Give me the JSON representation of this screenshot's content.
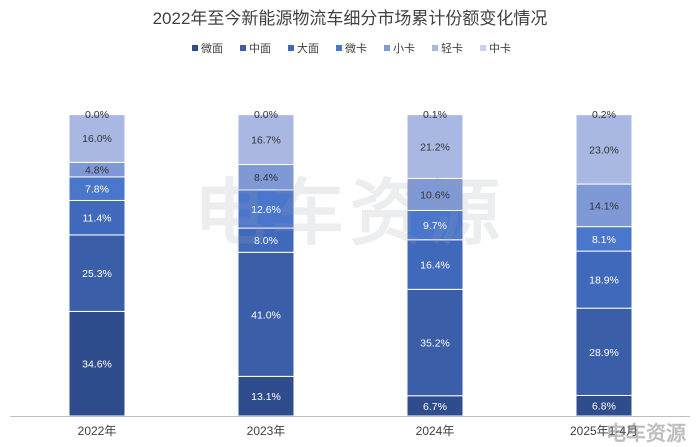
{
  "chart_data": {
    "type": "bar",
    "stacked": true,
    "normalized": true,
    "title": "2022年至今新能源物流车细分市场累计份额变化情况",
    "categories": [
      "2022年",
      "2023年",
      "2024年",
      "2025年1-4月"
    ],
    "legend_position": "top",
    "series": [
      {
        "name": "微面",
        "color": "#2f4d8c",
        "label_color": "#ffffff",
        "values": [
          34.6,
          13.1,
          6.7,
          6.8
        ],
        "labels": [
          "34.6%",
          "13.1%",
          "6.7%",
          "6.8%"
        ]
      },
      {
        "name": "中面",
        "color": "#3b5ea8",
        "label_color": "#ffffff",
        "values": [
          25.3,
          41.0,
          35.2,
          28.9
        ],
        "labels": [
          "25.3%",
          "41.0%",
          "35.2%",
          "28.9%"
        ]
      },
      {
        "name": "大面",
        "color": "#4169bb",
        "label_color": "#ffffff",
        "values": [
          11.4,
          8.0,
          16.4,
          18.9
        ],
        "labels": [
          "11.4%",
          "8.0%",
          "16.4%",
          "18.9%"
        ]
      },
      {
        "name": "微卡",
        "color": "#4a76cc",
        "label_color": "#ffffff",
        "values": [
          7.8,
          12.6,
          9.7,
          8.1
        ],
        "labels": [
          "7.8%",
          "12.6%",
          "9.7%",
          "8.1%"
        ]
      },
      {
        "name": "小卡",
        "color": "#7f98d6",
        "label_color": "#333333",
        "values": [
          4.8,
          8.4,
          10.6,
          14.1
        ],
        "labels": [
          "4.8%",
          "8.4%",
          "10.6%",
          "14.1%"
        ]
      },
      {
        "name": "轻卡",
        "color": "#a9b8e3",
        "label_color": "#333333",
        "values": [
          16.0,
          16.7,
          21.2,
          23.0
        ],
        "labels": [
          "16.0%",
          "16.7%",
          "21.2%",
          "23.0%"
        ]
      },
      {
        "name": "中卡",
        "color": "#c9d2ee",
        "label_color": "#333333",
        "values": [
          0.0,
          0.0,
          0.1,
          0.2
        ],
        "labels": [
          "0.0%",
          "0.0%",
          "0.1%",
          "0.2%"
        ]
      }
    ]
  },
  "watermark": {
    "text": "电车资源",
    "corner_text": "电车资源"
  }
}
